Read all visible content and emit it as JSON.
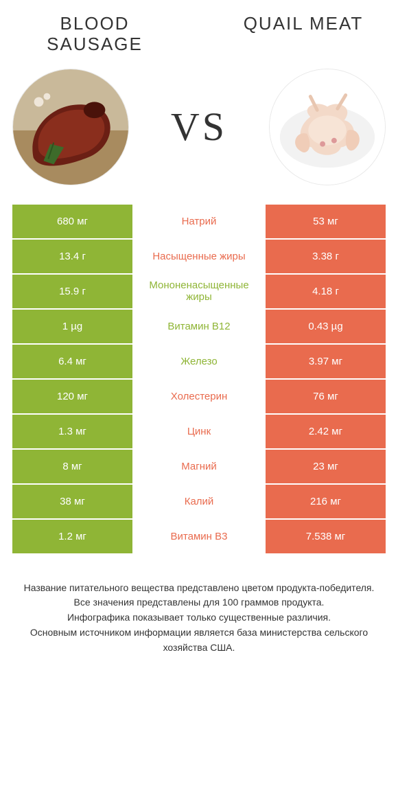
{
  "colors": {
    "green": "#8fb536",
    "orange": "#e96b4e",
    "text_dark": "#333333",
    "white": "#ffffff"
  },
  "title_left": "Blood Sausage",
  "title_right": "Quail Meat",
  "vs_label": "VS",
  "rows": [
    {
      "left": "680 мг",
      "mid": "Натрий",
      "right": "53 мг",
      "left_bg": "green",
      "mid_color": "orange",
      "right_bg": "orange"
    },
    {
      "left": "13.4 г",
      "mid": "Насыщенные жиры",
      "right": "3.38 г",
      "left_bg": "green",
      "mid_color": "orange",
      "right_bg": "orange"
    },
    {
      "left": "15.9 г",
      "mid": "Мононенасыщенные жиры",
      "right": "4.18 г",
      "left_bg": "green",
      "mid_color": "green",
      "right_bg": "orange"
    },
    {
      "left": "1 µg",
      "mid": "Витамин B12",
      "right": "0.43 µg",
      "left_bg": "green",
      "mid_color": "green",
      "right_bg": "orange"
    },
    {
      "left": "6.4 мг",
      "mid": "Железо",
      "right": "3.97 мг",
      "left_bg": "green",
      "mid_color": "green",
      "right_bg": "orange"
    },
    {
      "left": "120 мг",
      "mid": "Холестерин",
      "right": "76 мг",
      "left_bg": "green",
      "mid_color": "orange",
      "right_bg": "orange"
    },
    {
      "left": "1.3 мг",
      "mid": "Цинк",
      "right": "2.42 мг",
      "left_bg": "green",
      "mid_color": "orange",
      "right_bg": "orange"
    },
    {
      "left": "8 мг",
      "mid": "Магний",
      "right": "23 мг",
      "left_bg": "green",
      "mid_color": "orange",
      "right_bg": "orange"
    },
    {
      "left": "38 мг",
      "mid": "Калий",
      "right": "216 мг",
      "left_bg": "green",
      "mid_color": "orange",
      "right_bg": "orange"
    },
    {
      "left": "1.2 мг",
      "mid": "Витамин B3",
      "right": "7.538 мг",
      "left_bg": "green",
      "mid_color": "orange",
      "right_bg": "orange"
    }
  ],
  "footer_lines": [
    "Название питательного вещества представлено цветом продукта-победителя.",
    "Все значения представлены для 100 граммов продукта.",
    "Инфографика показывает только существенные различия.",
    "Основным источником информации является база министерства сельского хозяйства США."
  ]
}
